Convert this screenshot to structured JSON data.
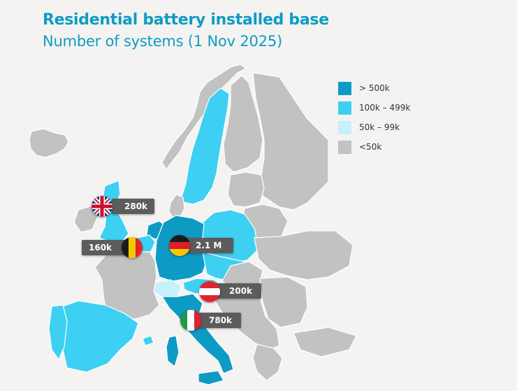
{
  "header": {
    "title": "Residential battery installed base",
    "subtitle": "Number of systems (1 Nov 2025)"
  },
  "legend": [
    {
      "label": "> 500k",
      "color": "#0d9bc5"
    },
    {
      "label": "100k – 499k",
      "color": "#3dd0f2"
    },
    {
      "label": "50k – 99k",
      "color": "#c6f0fb"
    },
    {
      "label": "<50k",
      "color": "#c2c2c2"
    }
  ],
  "callouts": {
    "uk": {
      "country": "United Kingdom",
      "value": "280k",
      "flag_icon": "uk-flag-icon"
    },
    "belgium": {
      "country": "Belgium",
      "value": "160k",
      "flag_icon": "belgium-flag-icon"
    },
    "germany": {
      "country": "Germany",
      "value": "2.1 M",
      "flag_icon": "germany-flag-icon"
    },
    "austria": {
      "country": "Austria",
      "value": "200k",
      "flag_icon": "austria-flag-icon"
    },
    "italy": {
      "country": "Italy",
      "value": "780k",
      "flag_icon": "italy-flag-icon"
    }
  },
  "colors": {
    "background": "#f4f3f1",
    "title": "#0e9cc4",
    "callout_bg": "#5c5c5c"
  }
}
